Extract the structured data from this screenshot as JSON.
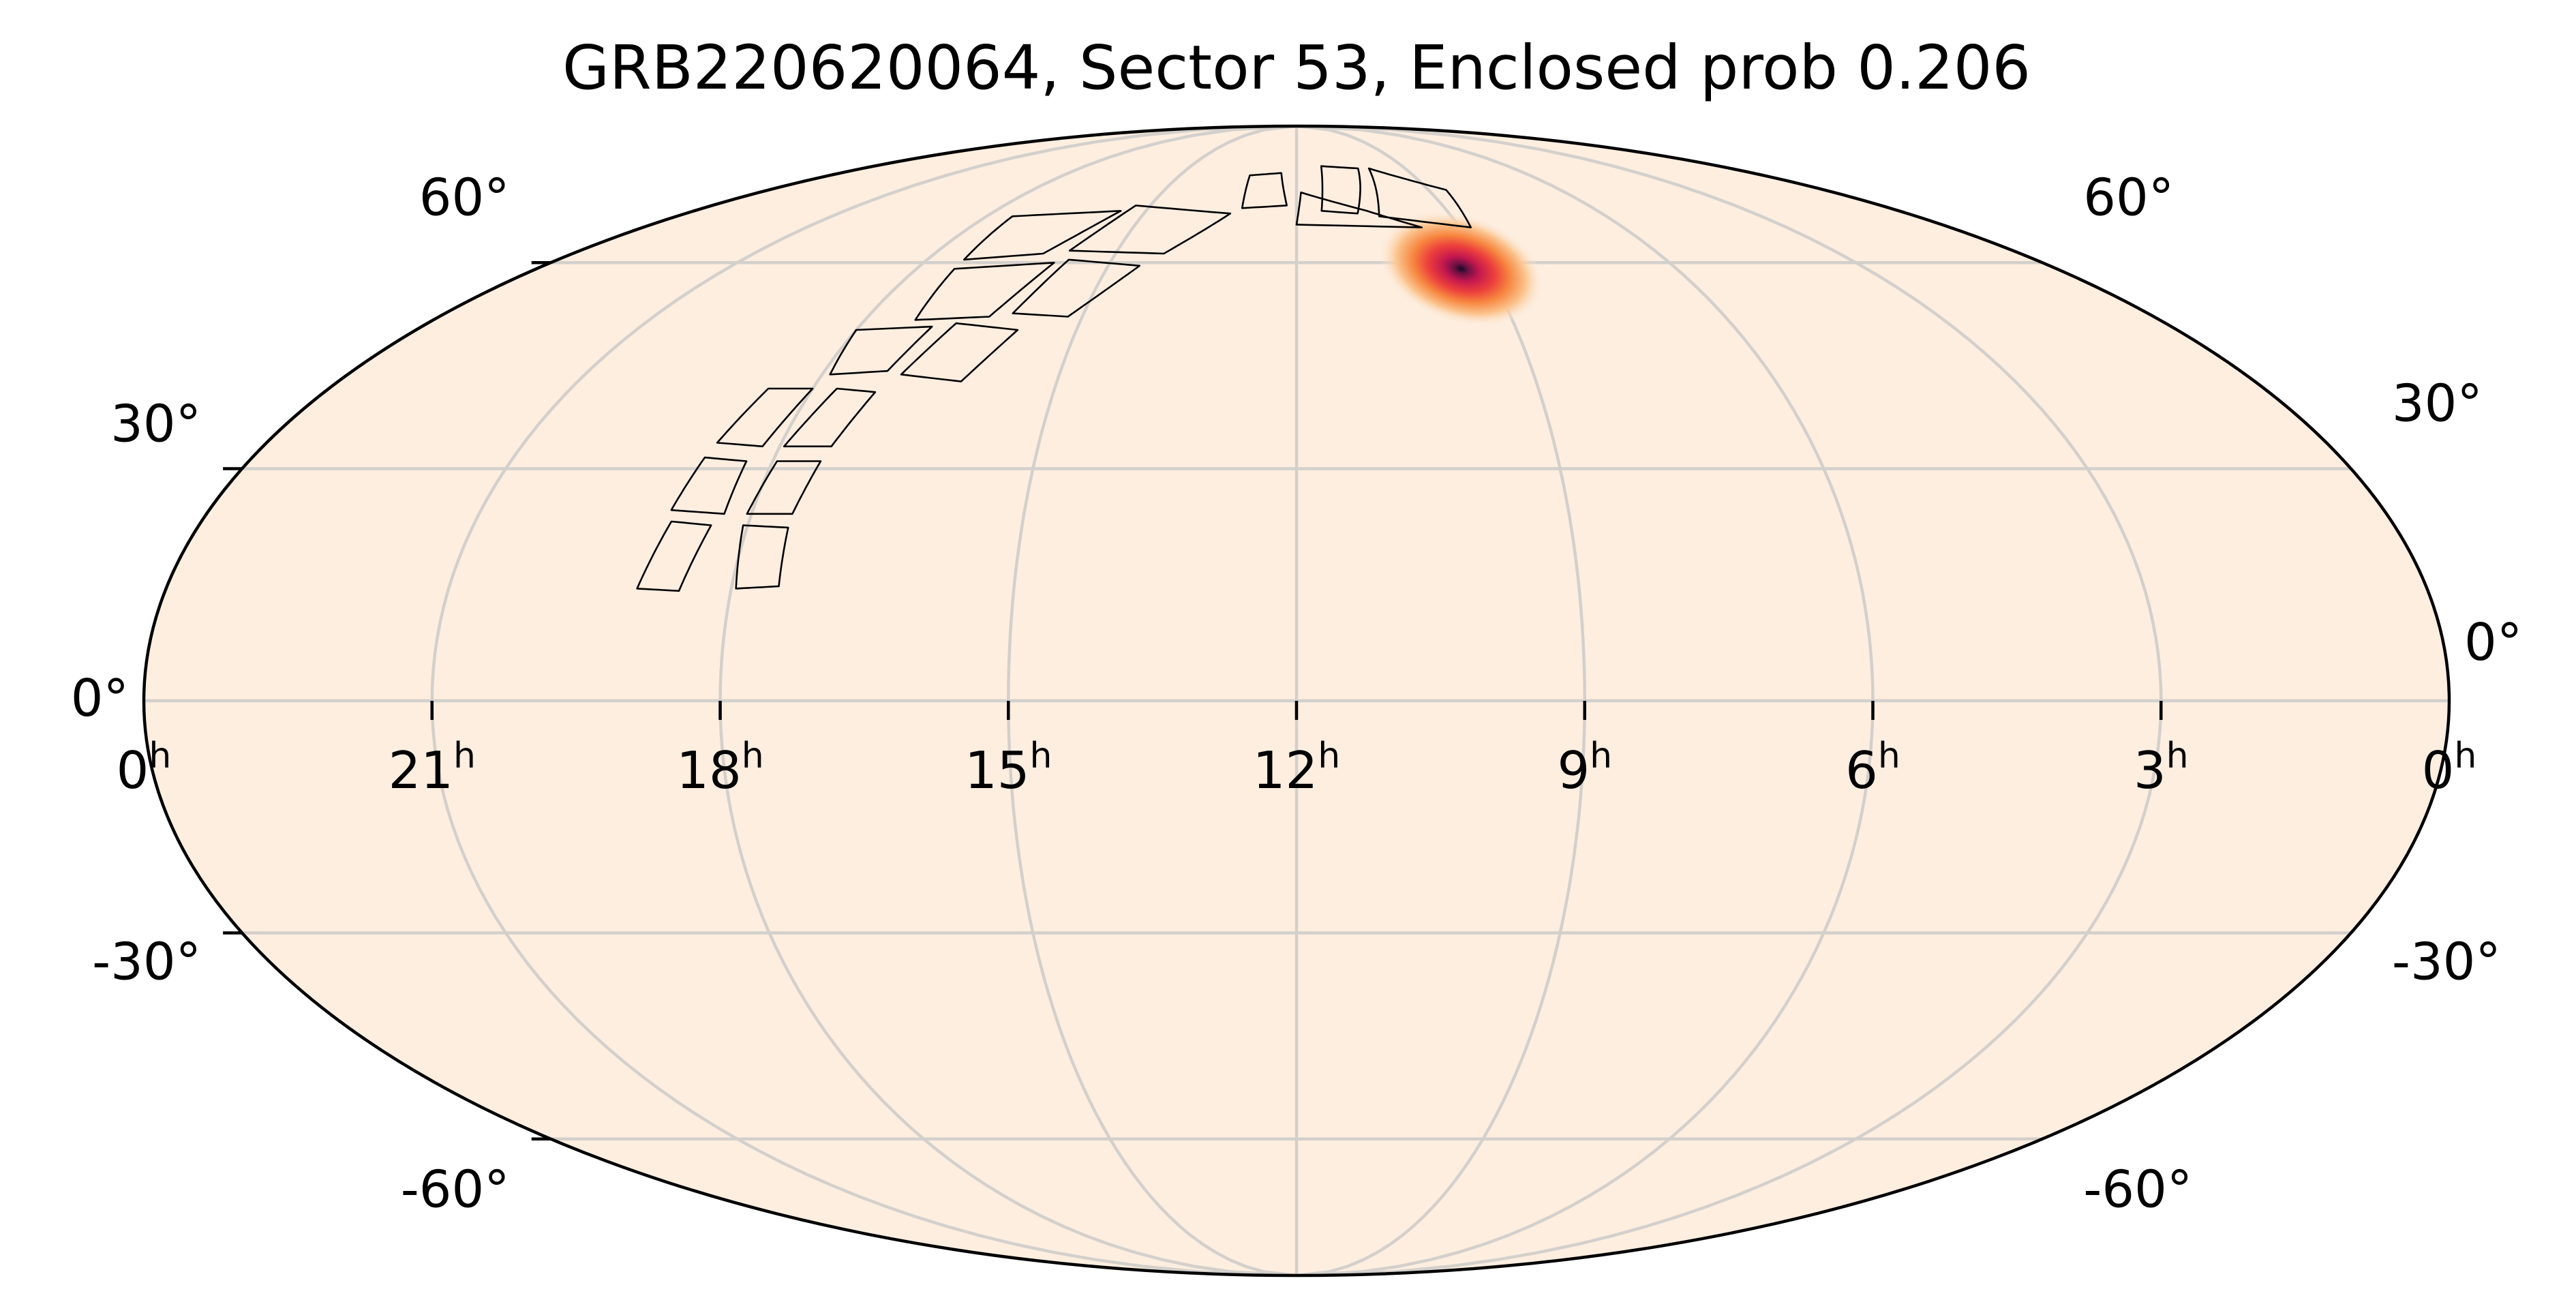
{
  "chart_data": {
    "type": "heatmap",
    "projection": "mollweide",
    "title": "GRB220620064, Sector 53, Enclosed prob 0.206",
    "xlabel": "",
    "ylabel": "",
    "ra_ticks": [
      {
        "label": "0",
        "unit": "h",
        "ra_hours": 24
      },
      {
        "label": "21",
        "unit": "h",
        "ra_hours": 21
      },
      {
        "label": "18",
        "unit": "h",
        "ra_hours": 18
      },
      {
        "label": "15",
        "unit": "h",
        "ra_hours": 15
      },
      {
        "label": "12",
        "unit": "h",
        "ra_hours": 12
      },
      {
        "label": "9",
        "unit": "h",
        "ra_hours": 9
      },
      {
        "label": "6",
        "unit": "h",
        "ra_hours": 6
      },
      {
        "label": "3",
        "unit": "h",
        "ra_hours": 3
      },
      {
        "label": "0",
        "unit": "h",
        "ra_hours": 0
      }
    ],
    "dec_ticks": [
      {
        "label": "60°",
        "dec": 60
      },
      {
        "label": "30°",
        "dec": 30
      },
      {
        "label": "0°",
        "dec": 0
      },
      {
        "label": "-30°",
        "dec": -30
      },
      {
        "label": "-60°",
        "dec": -60
      }
    ],
    "ra_range_hours": [
      0,
      24
    ],
    "ra_direction": "increasing-left",
    "dec_range": [
      -90,
      90
    ],
    "grid": true,
    "colormap": "inferno_r",
    "background_color": "#fdeee0",
    "localization": {
      "peak_ra_hours": 9.4,
      "peak_dec": 59,
      "sigma_deg": 3.5,
      "enclosed_prob": 0.206
    },
    "sector": 53
  }
}
